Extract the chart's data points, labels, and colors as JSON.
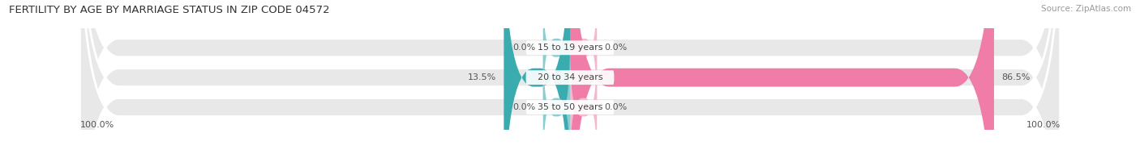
{
  "title": "FERTILITY BY AGE BY MARRIAGE STATUS IN ZIP CODE 04572",
  "source": "Source: ZipAtlas.com",
  "categories": [
    "15 to 19 years",
    "20 to 34 years",
    "35 to 50 years"
  ],
  "married_values": [
    0.0,
    13.5,
    0.0
  ],
  "unmarried_values": [
    0.0,
    86.5,
    0.0
  ],
  "left_labels": [
    "0.0%",
    "13.5%",
    "0.0%"
  ],
  "right_labels": [
    "0.0%",
    "86.5%",
    "0.0%"
  ],
  "bottom_left_label": "100.0%",
  "bottom_right_label": "100.0%",
  "married_color": "#3aacb0",
  "married_light_color": "#8dcdd0",
  "unmarried_color": "#f07ca8",
  "unmarried_light_color": "#f4b8cf",
  "bar_bg_color": "#e8e8e8",
  "bar_height": 0.62,
  "total": 100.0,
  "figsize": [
    14.06,
    1.96
  ],
  "title_fontsize": 9.5,
  "label_fontsize": 8.0,
  "legend_fontsize": 8.5,
  "source_fontsize": 7.5
}
